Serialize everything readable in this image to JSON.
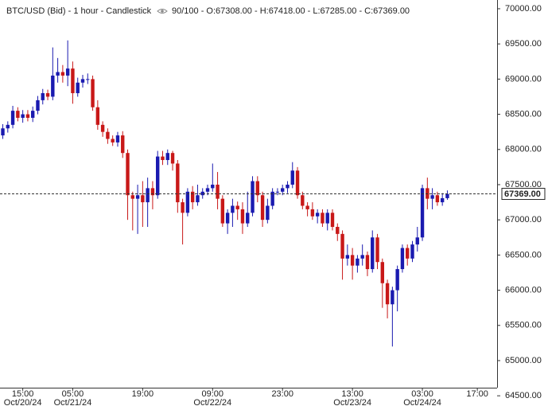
{
  "chart_data": {
    "type": "candlestick",
    "title": "BTC/USD (Bid) - 1 hour - Candlestick",
    "subtitle": "90/100 - O:67308.00 - H:67418.00 - L:67285.00 - C:67369.00",
    "up_color": "#1a1ab0",
    "down_color": "#c81818",
    "grid": false,
    "xlim": [
      -0.56,
      98.96
    ],
    "xticks": [
      {
        "value": 4,
        "label": "15:00"
      },
      {
        "value": 14,
        "label": "05:00"
      },
      {
        "value": 28,
        "label": "19:00"
      },
      {
        "value": 42,
        "label": "09:00"
      },
      {
        "value": 56,
        "label": "23:00"
      },
      {
        "value": 70,
        "label": "13:00"
      },
      {
        "value": 84,
        "label": "03:00"
      },
      {
        "value": 95,
        "label": "17:00"
      }
    ],
    "xtick_dates": [
      "Oct/20/24",
      "Oct/21/24",
      null,
      "Oct/22/24",
      null,
      "Oct/23/24",
      "Oct/24/24",
      null
    ],
    "ylim": [
      64615,
      70124
    ],
    "yticks": [
      {
        "value": 64500,
        "label": "64500.00"
      },
      {
        "value": 65000,
        "label": "65000.00"
      },
      {
        "value": 65500,
        "label": "65500.00"
      },
      {
        "value": 66000,
        "label": "66000.00"
      },
      {
        "value": 66500,
        "label": "66500.00"
      },
      {
        "value": 67000,
        "label": "67000.00"
      },
      {
        "value": 67500,
        "label": "67500.00"
      },
      {
        "value": 68000,
        "label": "68000.00"
      },
      {
        "value": 68500,
        "label": "68500.00"
      },
      {
        "value": 69000,
        "label": "69000.00"
      },
      {
        "value": 69500,
        "label": "69500.00"
      },
      {
        "value": 70000,
        "label": "70000.00"
      }
    ],
    "last_price": {
      "value": 67369,
      "label": "67369.00"
    },
    "open": [
      68200,
      68300,
      68350,
      68550,
      68450,
      68500,
      68450,
      68550,
      68700,
      68800,
      68750,
      69050,
      69100,
      69050,
      69150,
      68800,
      68950,
      69000,
      69000,
      68600,
      68350,
      68250,
      68150,
      68100,
      68200,
      67950,
      67350,
      67300,
      67350,
      67250,
      67450,
      67350,
      67900,
      67850,
      67950,
      67800,
      67250,
      67100,
      67400,
      67250,
      67350,
      67400,
      67450,
      67500,
      67300,
      66950,
      67100,
      67200,
      67150,
      66950,
      67100,
      67550,
      67350,
      67000,
      67200,
      67400,
      67400,
      67450,
      67500,
      67700,
      67350,
      67200,
      67150,
      67050,
      67100,
      66950,
      67100,
      66900,
      66800,
      66450,
      66500,
      66350,
      66450,
      66500,
      66300,
      66750,
      66400,
      66100,
      65800,
      66000,
      66300,
      66600,
      66450,
      66650,
      66750,
      67450,
      67300,
      67350,
      67250,
      67308
    ],
    "high": [
      68360,
      68400,
      68620,
      68600,
      68560,
      68560,
      68610,
      68760,
      68860,
      68850,
      69450,
      69300,
      69200,
      69550,
      69250,
      69020,
      69060,
      69080,
      69050,
      68700,
      68400,
      68300,
      68200,
      68250,
      68260,
      68000,
      67400,
      67500,
      67550,
      67600,
      67550,
      67980,
      67980,
      68000,
      67980,
      67850,
      67300,
      67450,
      67480,
      67500,
      67450,
      67500,
      67800,
      67680,
      67350,
      67150,
      67300,
      67260,
      67250,
      67400,
      67620,
      67620,
      67400,
      67300,
      67450,
      67450,
      67500,
      67550,
      67820,
      67750,
      67400,
      67250,
      67250,
      67150,
      67150,
      67150,
      67150,
      66950,
      66850,
      66650,
      66600,
      66500,
      66650,
      66550,
      66850,
      66800,
      66450,
      66150,
      66050,
      66350,
      66650,
      66650,
      66700,
      66900,
      67500,
      67600,
      67450,
      67400,
      67380,
      67418
    ],
    "low": [
      68150,
      68240,
      68300,
      68400,
      68380,
      68400,
      68390,
      68500,
      68640,
      68700,
      68700,
      68950,
      68950,
      68900,
      68650,
      68750,
      68880,
      68930,
      68550,
      68280,
      68180,
      68080,
      68050,
      68040,
      67880,
      67000,
      66850,
      66800,
      66900,
      66900,
      67150,
      67300,
      67780,
      67780,
      67700,
      67100,
      66650,
      67050,
      67150,
      67200,
      67300,
      67350,
      67400,
      67150,
      66900,
      66800,
      66900,
      67000,
      66800,
      66900,
      67050,
      67250,
      66900,
      66950,
      67150,
      67350,
      67350,
      67380,
      67450,
      67300,
      67150,
      67050,
      67000,
      66950,
      66900,
      66850,
      66850,
      66700,
      66150,
      66350,
      66150,
      66250,
      66350,
      66200,
      66250,
      66300,
      65750,
      65600,
      65200,
      65700,
      66250,
      66350,
      66400,
      66550,
      66700,
      67150,
      67150,
      67200,
      67200,
      67285
    ],
    "close": [
      68300,
      68350,
      68550,
      68450,
      68500,
      68450,
      68550,
      68700,
      68800,
      68750,
      69050,
      69100,
      69050,
      69150,
      68800,
      68950,
      69000,
      69000,
      68600,
      68350,
      68250,
      68150,
      68100,
      68200,
      67950,
      67350,
      67300,
      67350,
      67250,
      67450,
      67350,
      67900,
      67850,
      67950,
      67800,
      67250,
      67100,
      67400,
      67250,
      67350,
      67400,
      67450,
      67500,
      67300,
      66950,
      67100,
      67200,
      67150,
      66950,
      67100,
      67550,
      67350,
      67000,
      67200,
      67400,
      67400,
      67450,
      67500,
      67700,
      67350,
      67200,
      67150,
      67050,
      67100,
      66950,
      67100,
      66900,
      66800,
      66450,
      66500,
      66350,
      66450,
      66500,
      66300,
      66750,
      66400,
      66100,
      65800,
      66000,
      66300,
      66600,
      66450,
      66650,
      66750,
      67450,
      67300,
      67350,
      67250,
      67308,
      67369
    ]
  }
}
